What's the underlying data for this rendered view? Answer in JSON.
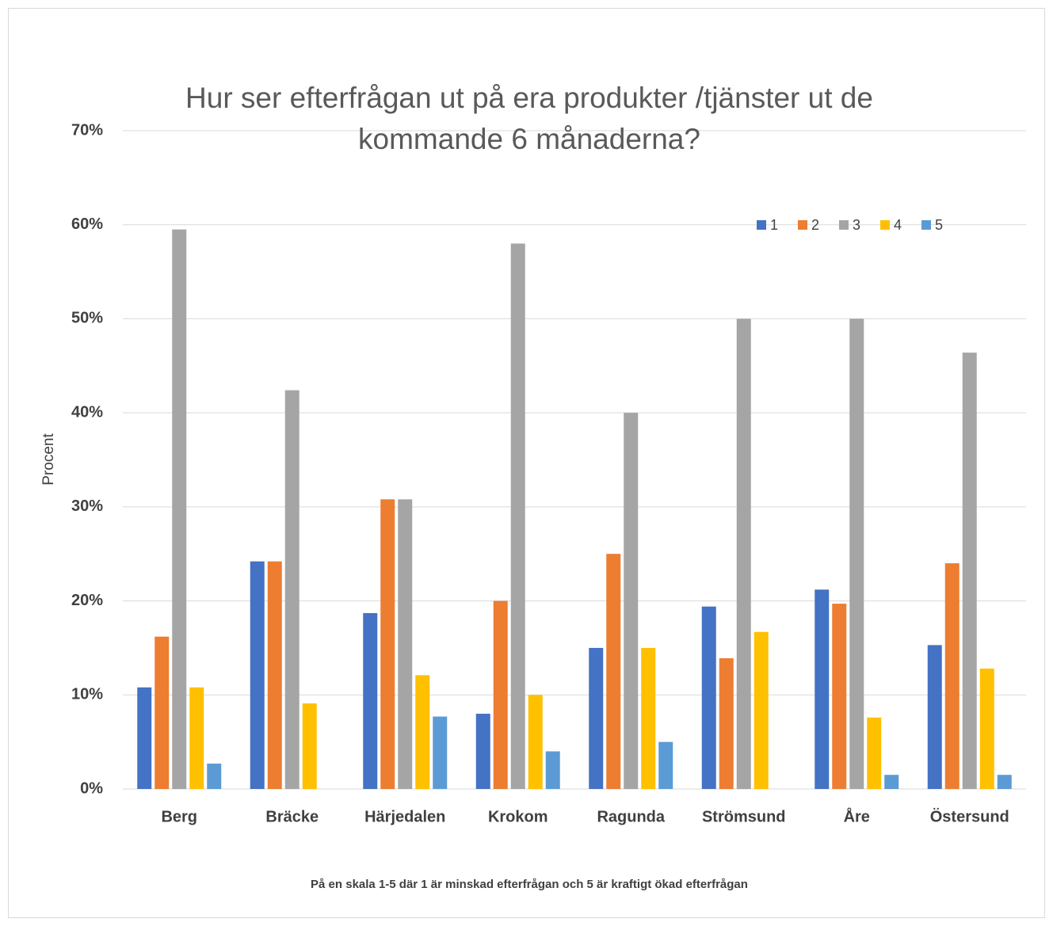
{
  "chart_data": {
    "type": "bar",
    "title": "Hur ser efterfrågan ut på era produkter /tjänster ut de kommande 6 månaderna?",
    "y_label": "Procent",
    "x_label": "På en skala 1-5 där 1 är minskad efterfrågan och 5 är kraftigt ökad efterfrågan",
    "categories": [
      "Berg",
      "Bräcke",
      "Härjedalen",
      "Krokom",
      "Ragunda",
      "Strömsund",
      "Åre",
      "Östersund"
    ],
    "series": [
      {
        "name": "1",
        "color": "#4472c4",
        "values": [
          10.8,
          24.2,
          18.7,
          8,
          15,
          19.4,
          21.2,
          15.3
        ]
      },
      {
        "name": "2",
        "color": "#ed7d31",
        "values": [
          16.2,
          24.2,
          30.8,
          20,
          25,
          13.9,
          19.7,
          24
        ]
      },
      {
        "name": "3",
        "color": "#a5a5a5",
        "values": [
          59.5,
          42.4,
          30.8,
          58,
          40,
          50,
          50,
          46.4
        ]
      },
      {
        "name": "4",
        "color": "#ffc000",
        "values": [
          10.8,
          9.1,
          12.1,
          10,
          15,
          16.7,
          7.6,
          12.8
        ]
      },
      {
        "name": "5",
        "color": "#5b9bd5",
        "values": [
          2.7,
          0,
          7.7,
          4,
          5,
          0,
          1.5,
          1.5
        ]
      }
    ],
    "ylim": [
      0,
      70
    ],
    "yticks": [
      {
        "value": 0,
        "label": "0%"
      },
      {
        "value": 10,
        "label": "10%"
      },
      {
        "value": 20,
        "label": "20%"
      },
      {
        "value": 30,
        "label": "30%"
      },
      {
        "value": 40,
        "label": "40%"
      },
      {
        "value": 50,
        "label": "50%"
      },
      {
        "value": 60,
        "label": "60%"
      },
      {
        "value": 70,
        "label": "70%"
      }
    ],
    "grid": true,
    "legend": "top-right"
  }
}
